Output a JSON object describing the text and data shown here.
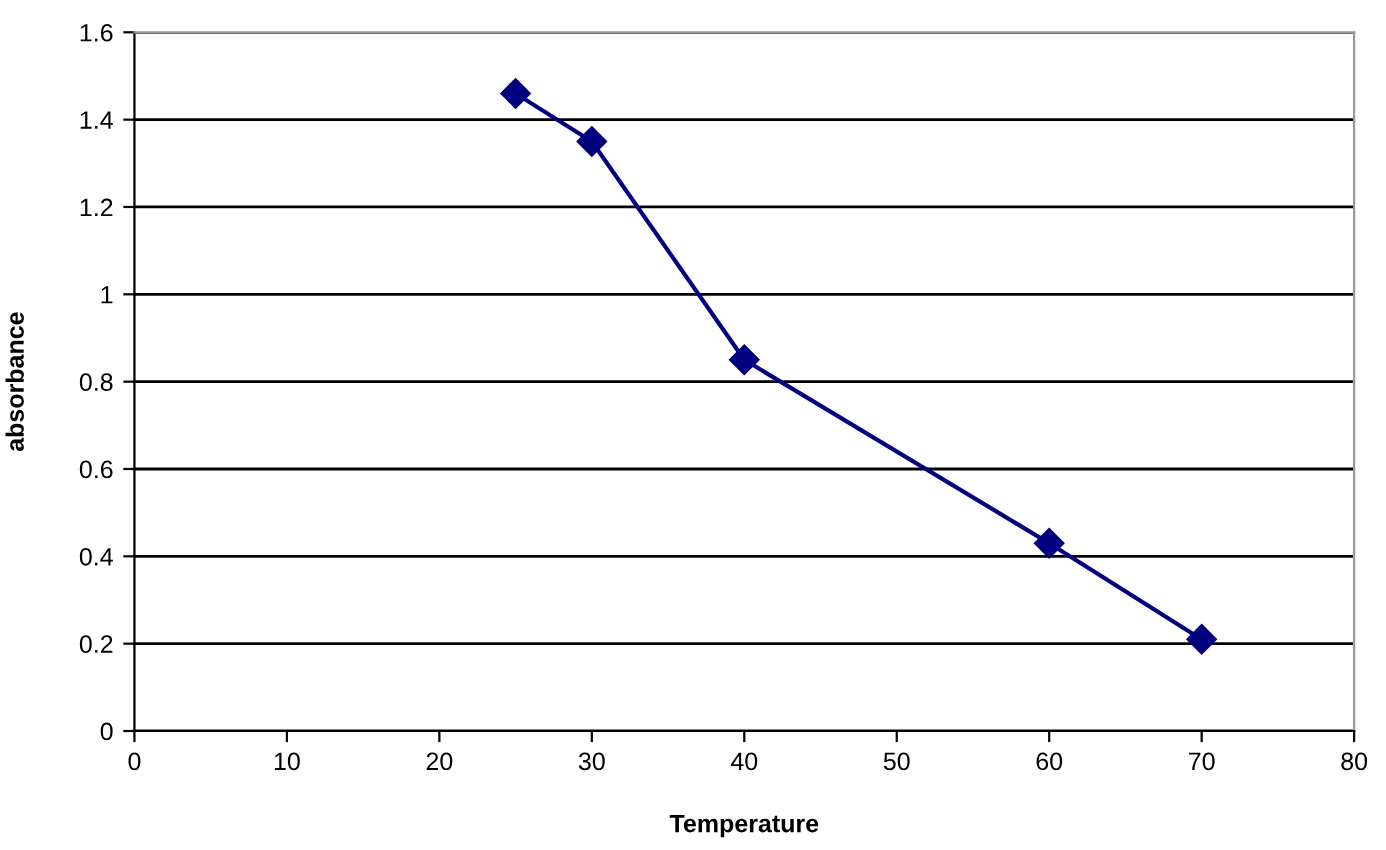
{
  "chart_data": {
    "type": "line",
    "xlabel": "Temperature",
    "ylabel": "absorbance",
    "x": [
      25,
      30,
      40,
      60,
      70
    ],
    "series": [
      {
        "color": "#000080",
        "values": [
          1.46,
          1.35,
          0.85,
          0.43,
          0.21
        ]
      }
    ],
    "xlim": [
      0,
      80
    ],
    "xticks": [
      0,
      10,
      20,
      30,
      40,
      50,
      60,
      70,
      80
    ],
    "ylim": [
      0,
      1.6
    ],
    "yticks": [
      0,
      0.2,
      0.4,
      {
        "value": 0.6,
        "label": "0.6"
      },
      0.8,
      1,
      1.2,
      1.4,
      1.6
    ],
    "grid": "y",
    "marker": "diamond",
    "line_style": "solid",
    "legend": false
  }
}
